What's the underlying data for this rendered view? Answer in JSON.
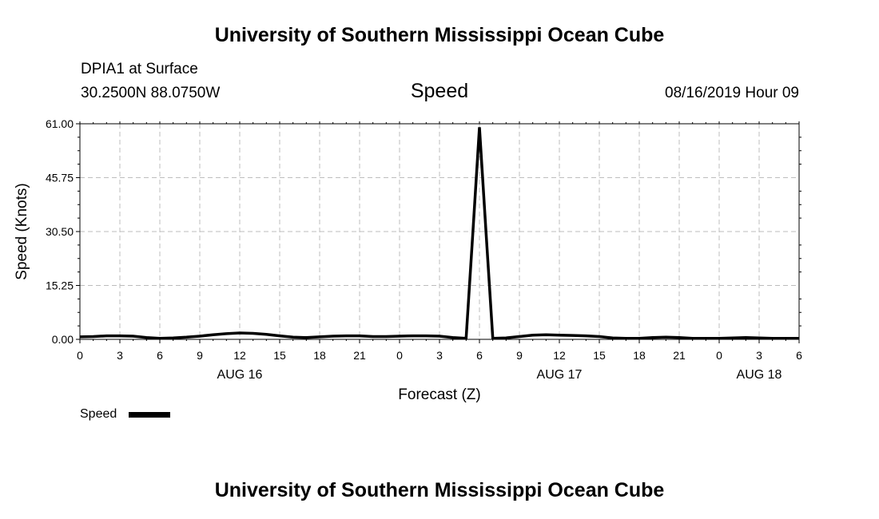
{
  "page": {
    "title_top": "University of Southern Mississippi Ocean Cube",
    "title_bottom": "University of Southern Mississippi Ocean Cube",
    "station": "DPIA1 at Surface",
    "location": "30.2500N 88.0750W",
    "variable": "Speed",
    "datetime": "08/16/2019 Hour 09"
  },
  "chart_data": {
    "type": "line",
    "title": "Speed",
    "xlabel": "Forecast (Z)",
    "ylabel": "Speed (Knots)",
    "ylim": [
      0,
      61
    ],
    "xlim": [
      0,
      54
    ],
    "y_ticks": [
      "0.00",
      "15.25",
      "30.50",
      "45.75",
      "61.00"
    ],
    "x_tick_values": [
      0,
      3,
      6,
      9,
      12,
      15,
      18,
      21,
      24,
      27,
      30,
      33,
      36,
      39,
      42,
      45,
      48,
      51,
      54
    ],
    "x_tick_labels": [
      "0",
      "3",
      "6",
      "9",
      "12",
      "15",
      "18",
      "21",
      "0",
      "3",
      "6",
      "9",
      "12",
      "15",
      "18",
      "21",
      "0",
      "3",
      "6"
    ],
    "date_labels": [
      {
        "x": 12,
        "label": "AUG 16"
      },
      {
        "x": 36,
        "label": "AUG 17"
      },
      {
        "x": 51,
        "label": "AUG 18"
      }
    ],
    "grid": true,
    "legend_position": "bottom-left",
    "series": [
      {
        "name": "Speed",
        "color": "#000000",
        "x": [
          0,
          1,
          2,
          3,
          4,
          5,
          6,
          7,
          8,
          9,
          10,
          11,
          12,
          13,
          14,
          15,
          16,
          17,
          18,
          19,
          20,
          21,
          22,
          23,
          24,
          25,
          26,
          27,
          28,
          29,
          29.5,
          30,
          30.5,
          31,
          32,
          33,
          34,
          35,
          36,
          37,
          38,
          39,
          40,
          41,
          42,
          43,
          44,
          45,
          46,
          47,
          48,
          49,
          50,
          51,
          52,
          53,
          54
        ],
        "values": [
          0.7,
          0.8,
          1.0,
          1.0,
          0.9,
          0.5,
          0.3,
          0.4,
          0.6,
          0.9,
          1.3,
          1.6,
          1.8,
          1.7,
          1.4,
          1.0,
          0.6,
          0.5,
          0.7,
          0.9,
          1.0,
          1.0,
          0.8,
          0.8,
          0.9,
          1.0,
          1.0,
          0.9,
          0.5,
          0.3,
          30.0,
          60.0,
          30.0,
          0.3,
          0.4,
          0.8,
          1.2,
          1.3,
          1.2,
          1.1,
          1.0,
          0.8,
          0.4,
          0.3,
          0.3,
          0.5,
          0.6,
          0.5,
          0.3,
          0.3,
          0.3,
          0.4,
          0.5,
          0.4,
          0.3,
          0.3,
          0.3
        ]
      }
    ]
  },
  "legend": {
    "label": "Speed"
  }
}
